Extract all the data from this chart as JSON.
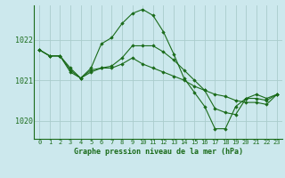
{
  "title": "Graphe pression niveau de la mer (hPa)",
  "bg_color": "#cce8ed",
  "grid_color": "#aacccc",
  "line_color": "#1a6b1a",
  "marker_color": "#1a6b1a",
  "xlim": [
    -0.5,
    23.5
  ],
  "ylim": [
    1019.55,
    1022.85
  ],
  "yticks": [
    1020,
    1021,
    1022
  ],
  "xticks": [
    0,
    1,
    2,
    3,
    4,
    5,
    6,
    7,
    8,
    9,
    10,
    11,
    12,
    13,
    14,
    15,
    16,
    17,
    18,
    19,
    20,
    21,
    22,
    23
  ],
  "series": [
    [
      1021.75,
      1021.6,
      1021.6,
      1021.2,
      1021.05,
      1021.3,
      1021.9,
      1022.05,
      1022.4,
      1022.65,
      1022.75,
      1022.6,
      1022.2,
      1021.65,
      1021.05,
      1020.7,
      1020.35,
      1019.8,
      1019.8,
      1020.35,
      1020.55,
      1020.65,
      1020.55,
      1020.65
    ],
    [
      1021.75,
      1021.6,
      1021.6,
      1021.3,
      1021.05,
      1021.25,
      1021.3,
      1021.35,
      1021.55,
      1021.85,
      1021.85,
      1021.85,
      1021.7,
      1021.5,
      1021.25,
      1021.0,
      1020.75,
      1020.3,
      1020.2,
      1020.15,
      1020.55,
      1020.55,
      1020.5,
      1020.65
    ],
    [
      1021.75,
      1021.6,
      1021.6,
      1021.25,
      1021.05,
      1021.2,
      1021.3,
      1021.3,
      1021.4,
      1021.55,
      1021.4,
      1021.3,
      1021.2,
      1021.1,
      1021.0,
      1020.85,
      1020.75,
      1020.65,
      1020.6,
      1020.5,
      1020.45,
      1020.45,
      1020.4,
      1020.65
    ]
  ]
}
